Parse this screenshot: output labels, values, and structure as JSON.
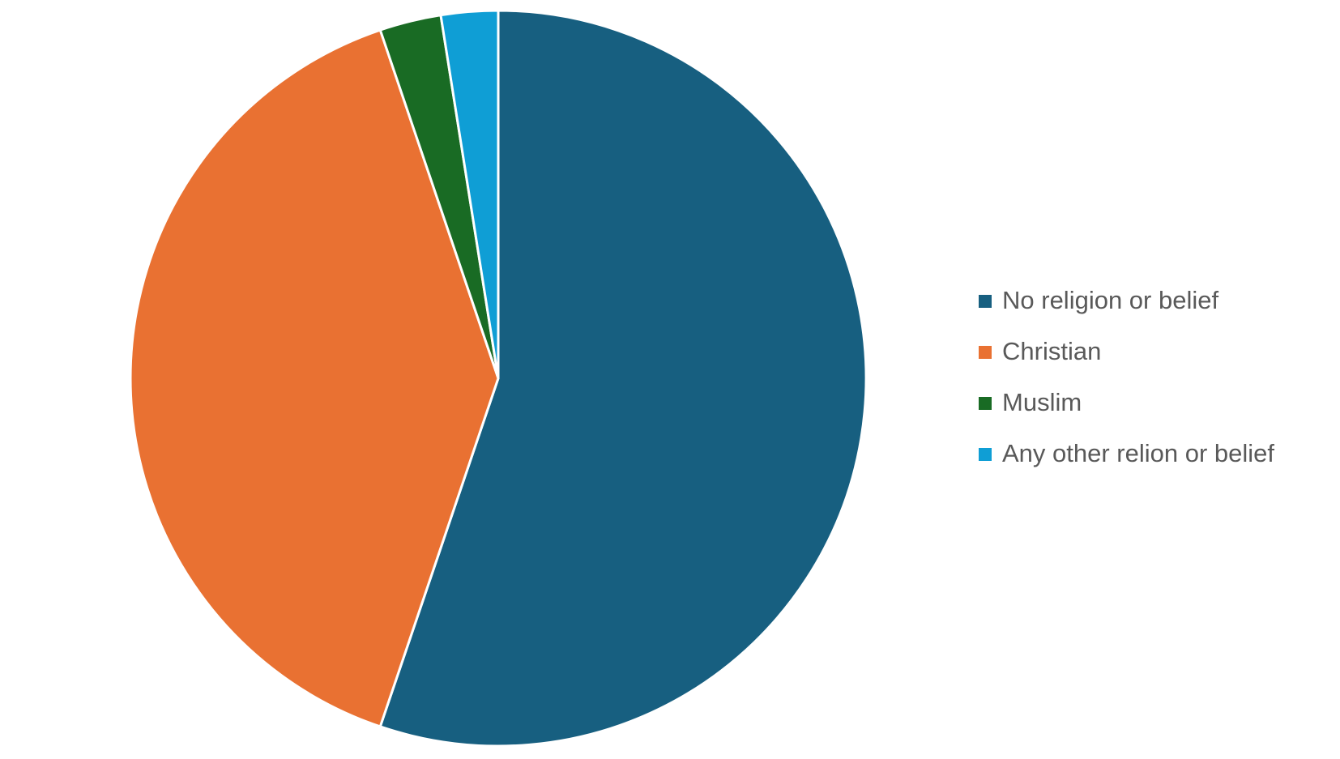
{
  "chart_data": {
    "type": "pie",
    "categories": [
      "No religion or belief",
      "Christian",
      "Muslim",
      "Any other relion or belief"
    ],
    "values": [
      55.2,
      39.6,
      2.7,
      2.5
    ],
    "colors": [
      "#175f80",
      "#e97132",
      "#196b24",
      "#0f9ed5"
    ],
    "legend": "right"
  }
}
